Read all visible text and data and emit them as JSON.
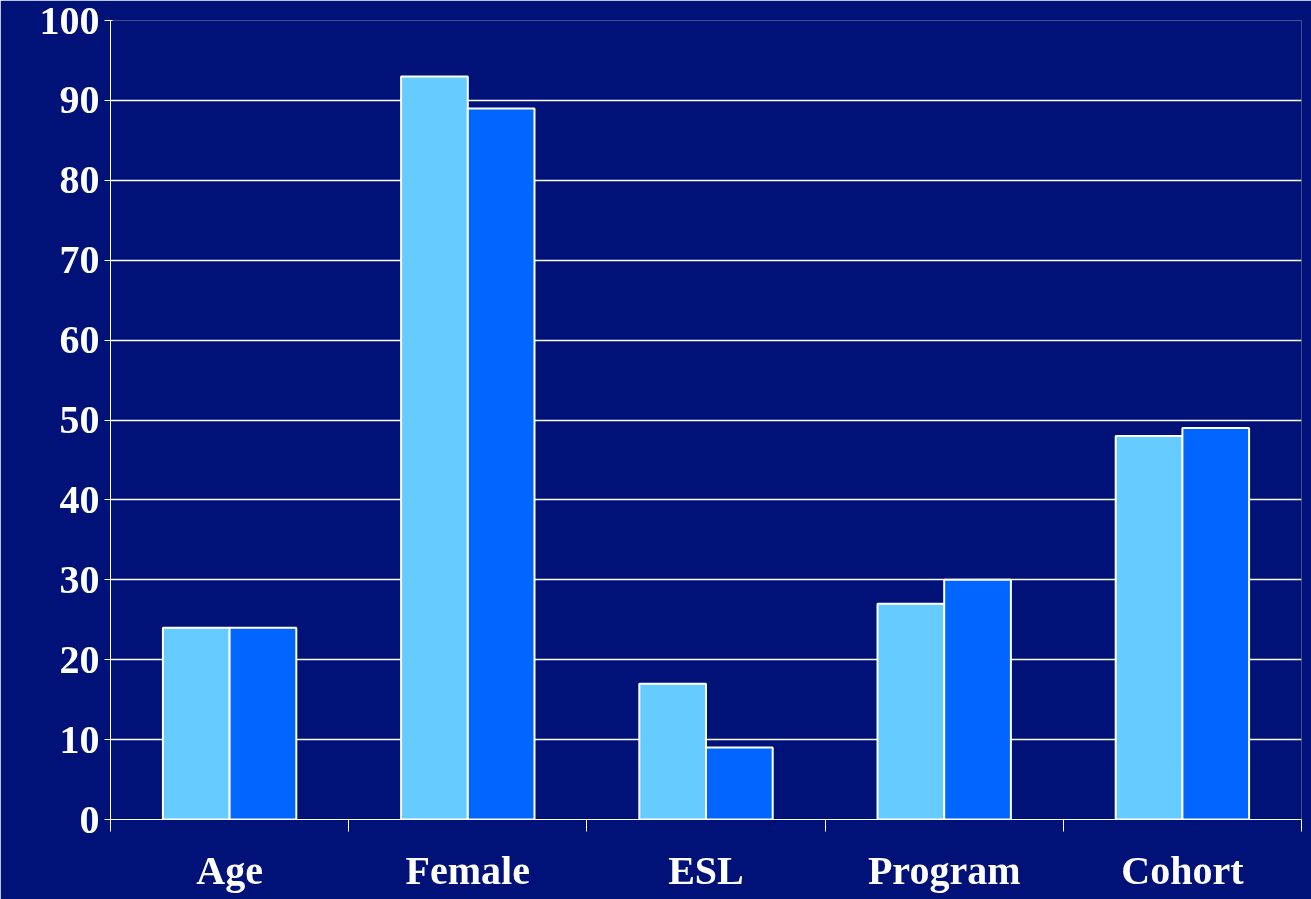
{
  "chart_data": {
    "type": "bar",
    "categories": [
      "Age",
      "Female",
      "ESL",
      "Program",
      "Cohort"
    ],
    "series": [
      {
        "color": "#66ccff",
        "values": [
          24,
          93,
          17,
          27,
          48
        ]
      },
      {
        "color": "#0066ff",
        "values": [
          24,
          89,
          9,
          30,
          49
        ]
      }
    ],
    "ylim": [
      0,
      100
    ],
    "yticks": [
      0,
      10,
      20,
      30,
      40,
      50,
      60,
      70,
      80,
      90,
      100
    ],
    "grid": "y"
  }
}
